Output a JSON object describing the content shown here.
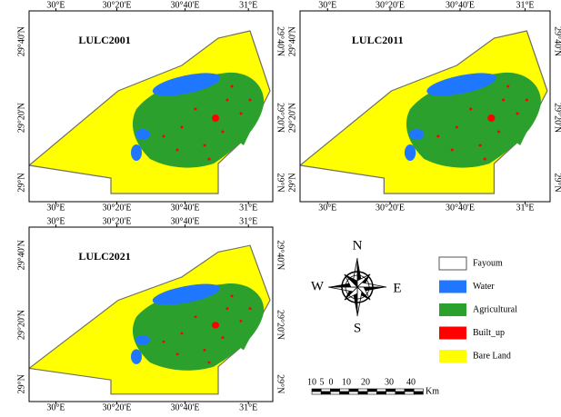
{
  "maps": [
    {
      "title": "LULC2001",
      "top_ticks": [
        "30°E",
        "30°20'E",
        "30°40'E",
        "31°E"
      ],
      "bottom_ticks": [
        "30°E",
        "30°20'E",
        "30°40'E",
        "31°E"
      ],
      "left_ticks": [
        "29°40'N",
        "29°20'N",
        "29°N"
      ],
      "right_ticks": [
        "29°40'N",
        "29°20'N",
        "29°N"
      ]
    },
    {
      "title": "LULC2011",
      "top_ticks": [
        "30°E",
        "30°20'E",
        "30°40'E",
        "31°E"
      ],
      "bottom_ticks": [
        "30°E",
        "30°20'E",
        "30°40'E",
        "31°E"
      ],
      "left_ticks": [
        "29°40'N",
        "29°20'N",
        "29°N"
      ],
      "right_ticks": [
        "29°40'N",
        "29°20'N",
        "29°N"
      ]
    },
    {
      "title": "LULC2021",
      "top_ticks": [
        "30°E",
        "30°20'E",
        "30°40'E",
        "31°E"
      ],
      "bottom_ticks": [
        "30°E",
        "30°20'E",
        "30°40'E",
        "31°E"
      ],
      "left_ticks": [
        "29°40'N",
        "29°20'N",
        "29°N"
      ],
      "right_ticks": [
        "29°40'N",
        "29°20'N",
        "29°N"
      ]
    }
  ],
  "compass": {
    "north": "N",
    "south": "S",
    "east": "E",
    "west": "W"
  },
  "legend": [
    {
      "label": "Fayoum",
      "color": "#ffffff"
    },
    {
      "label": "Water",
      "color": "#1f77ff"
    },
    {
      "label": "Agricultural",
      "color": "#2ca02c"
    },
    {
      "label": "Built_up",
      "color": "#ff0000"
    },
    {
      "label": "Bare Land",
      "color": "#ffff00"
    }
  ],
  "scale_bar": {
    "labels": [
      10,
      5,
      0,
      10,
      20,
      30,
      40
    ],
    "unit": "Km"
  }
}
